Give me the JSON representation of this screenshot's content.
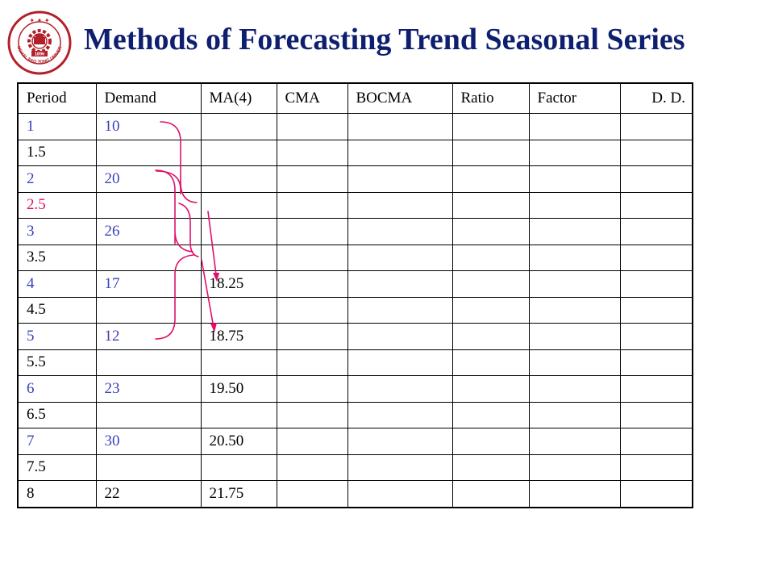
{
  "title": "Methods of Forecasting Trend Seasonal Series",
  "logo": {
    "icon": "sjtu-university-seal-icon",
    "text": "SHANGHAI JIAO TONG UNIVERSITY",
    "year": "1896"
  },
  "colors": {
    "title": "#0f1f70",
    "blue_text": "#3a40bd",
    "pink_text": "#e0106a",
    "annotation": "#e0106a"
  },
  "table": {
    "headers": [
      "Period",
      "Demand",
      "MA(4)",
      "CMA",
      "BOCMA",
      "Ratio",
      "Factor",
      "D. D."
    ],
    "rows": [
      {
        "period": "1",
        "demand": "10",
        "ma4": "",
        "period_color": "blue",
        "demand_color": "blue"
      },
      {
        "period": "1.5",
        "demand": "",
        "ma4": "",
        "period_color": "black",
        "demand_color": "black"
      },
      {
        "period": "2",
        "demand": "20",
        "ma4": "",
        "period_color": "blue",
        "demand_color": "blue"
      },
      {
        "period": "2.5",
        "demand": "",
        "ma4": "",
        "period_color": "pink",
        "demand_color": "black"
      },
      {
        "period": "3",
        "demand": "26",
        "ma4": "",
        "period_color": "blue",
        "demand_color": "blue"
      },
      {
        "period": "3.5",
        "demand": "",
        "ma4": "",
        "period_color": "black",
        "demand_color": "black"
      },
      {
        "period": "4",
        "demand": "17",
        "ma4": "18.25",
        "period_color": "blue",
        "demand_color": "blue"
      },
      {
        "period": "4.5",
        "demand": "",
        "ma4": "",
        "period_color": "black",
        "demand_color": "black"
      },
      {
        "period": "5",
        "demand": "12",
        "ma4": "18.75",
        "period_color": "blue",
        "demand_color": "blue"
      },
      {
        "period": "5.5",
        "demand": "",
        "ma4": "",
        "period_color": "black",
        "demand_color": "black"
      },
      {
        "period": "6",
        "demand": "23",
        "ma4": "19.50",
        "period_color": "blue",
        "demand_color": "blue"
      },
      {
        "period": "6.5",
        "demand": "",
        "ma4": "",
        "period_color": "black",
        "demand_color": "black"
      },
      {
        "period": "7",
        "demand": "30",
        "ma4": "20.50",
        "period_color": "blue",
        "demand_color": "blue"
      },
      {
        "period": "7.5",
        "demand": "",
        "ma4": "",
        "period_color": "black",
        "demand_color": "black"
      },
      {
        "period": "8",
        "demand": "22",
        "ma4": "21.75",
        "period_color": "black",
        "demand_color": "black"
      }
    ]
  }
}
